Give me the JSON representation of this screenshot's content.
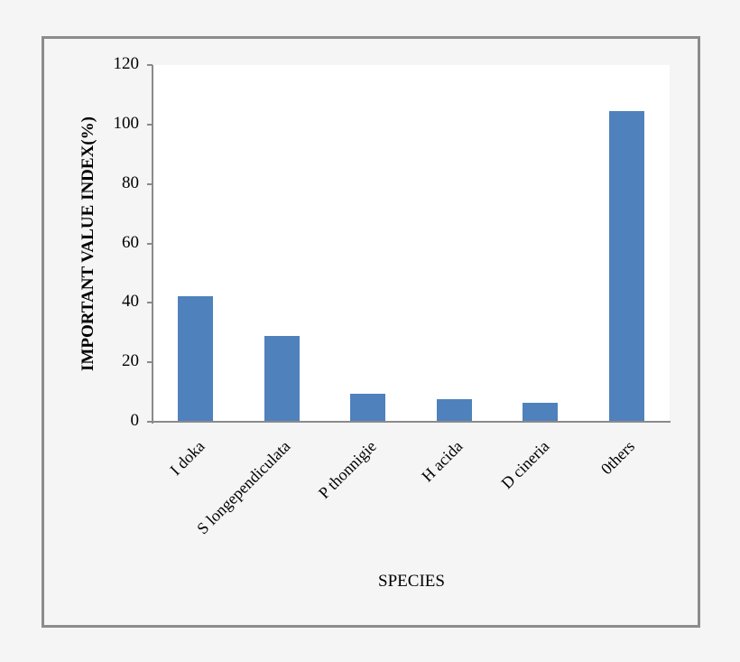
{
  "chart_data": {
    "type": "bar",
    "title": "",
    "xlabel": "SPECIES",
    "ylabel": "IMPORTANT VALUE INDEX(%)",
    "categories": [
      "I doka",
      "S longependiculata",
      "P thonnigie",
      "H acida",
      "D cineria",
      "0thers"
    ],
    "values": [
      42.2,
      28.9,
      9.5,
      7.7,
      6.3,
      104.5
    ],
    "ylim": [
      0,
      120
    ],
    "yticks": [
      0,
      20,
      40,
      60,
      80,
      100,
      120
    ],
    "grid": false,
    "legend": null,
    "bar_color": "#4f81bd"
  },
  "axis": {
    "y_title": "IMPORTANT VALUE INDEX(%)",
    "x_title": "SPECIES",
    "ticks": [
      "0",
      "20",
      "40",
      "60",
      "80",
      "100",
      "120"
    ]
  },
  "categories": [
    "I doka",
    "S longependiculata",
    "P thonnigie",
    "H acida",
    "D cineria",
    "0thers"
  ]
}
